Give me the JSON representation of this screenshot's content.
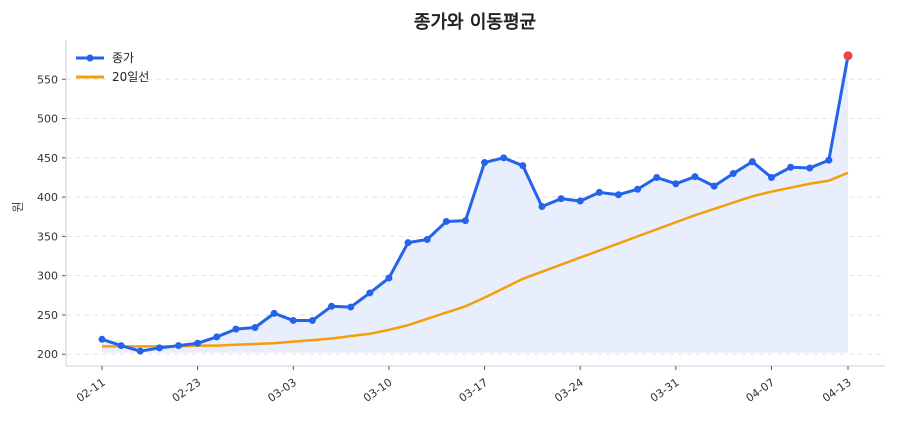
{
  "chart_data": {
    "type": "line",
    "title": "종가와 이동평균",
    "xlabel": "",
    "ylabel": "원",
    "x_tick_labels": [
      {
        "index": 0,
        "label": "02-11"
      },
      {
        "index": 5,
        "label": "02-23"
      },
      {
        "index": 10,
        "label": "03-03"
      },
      {
        "index": 15,
        "label": "03-10"
      },
      {
        "index": 20,
        "label": "03-17"
      },
      {
        "index": 25,
        "label": "03-24"
      },
      {
        "index": 30,
        "label": "03-31"
      },
      {
        "index": 35,
        "label": "04-07"
      },
      {
        "index": 39,
        "label": "04-13"
      }
    ],
    "y_ticks": [
      200,
      250,
      300,
      350,
      400,
      450,
      500,
      550
    ],
    "ylim": [
      185,
      600
    ],
    "grid": "horizontal dashed",
    "legend": "top-left",
    "series": [
      {
        "name": "종가",
        "color": "#2563eb",
        "fill": "#e8eefb",
        "markers": true,
        "values": [
          219,
          211,
          204,
          208,
          211,
          214,
          222,
          232,
          234,
          252,
          243,
          243,
          261,
          260,
          278,
          297,
          342,
          346,
          369,
          370,
          444,
          450,
          440,
          388,
          398,
          395,
          406,
          403,
          410,
          425,
          417,
          426,
          414,
          430,
          445,
          425,
          438,
          437,
          447,
          580
        ]
      },
      {
        "name": "20일선",
        "color": "#f59e0b",
        "values": [
          210,
          210,
          210,
          210,
          210,
          211,
          211,
          212,
          213,
          214,
          216,
          218,
          220,
          223,
          226,
          231,
          237,
          245,
          253,
          261,
          272,
          284,
          296,
          305,
          314,
          323,
          332,
          341,
          350,
          359,
          368,
          377,
          385,
          393,
          401,
          407,
          412,
          417,
          421,
          431
        ]
      }
    ],
    "highlight_last_point_color": "#ef4444"
  }
}
